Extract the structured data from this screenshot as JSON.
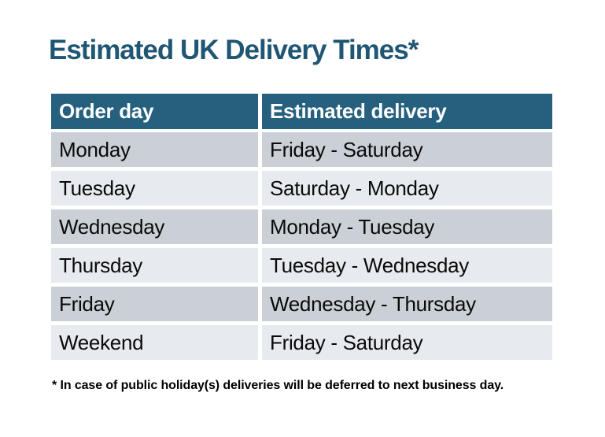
{
  "title": "Estimated UK Delivery Times*",
  "table": {
    "headers": [
      "Order day",
      "Estimated delivery"
    ],
    "rows": [
      [
        "Monday",
        "Friday - Saturday"
      ],
      [
        "Tuesday",
        "Saturday - Monday"
      ],
      [
        "Wednesday",
        "Monday - Tuesday"
      ],
      [
        "Thursday",
        "Tuesday - Wednesday"
      ],
      [
        "Friday",
        "Wednesday - Thursday"
      ],
      [
        "Weekend",
        "Friday - Saturday"
      ]
    ]
  },
  "footnote": "* In case of public holiday(s) deliveries will be deferred to next business day.",
  "colors": {
    "header_bg": "#26607F",
    "title_color": "#1F5673",
    "row_odd": "#CBD0D7",
    "row_even": "#E7EAEE"
  }
}
